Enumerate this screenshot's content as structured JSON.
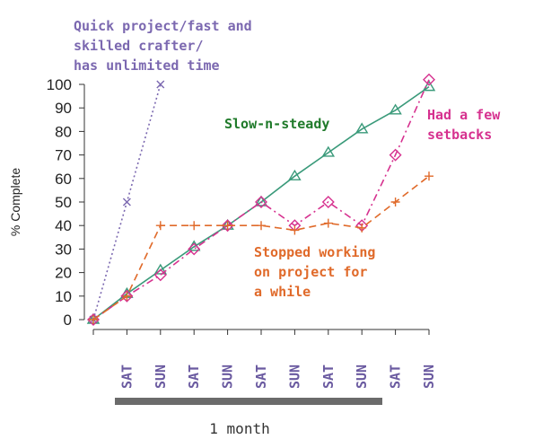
{
  "chart_data": {
    "type": "line",
    "ylabel": "% Complete",
    "ylim": [
      0,
      100
    ],
    "yticks": [
      0,
      10,
      20,
      30,
      40,
      50,
      60,
      70,
      80,
      90,
      100
    ],
    "x_labels": [
      "SAT",
      "SUN",
      "SAT",
      "SUN",
      "SAT",
      "SUN",
      "SAT",
      "SUN",
      "SAT",
      "SUN"
    ],
    "span_label": "1 month",
    "series": [
      {
        "name": "Quick project/fast and skilled crafter/ has unlimited time",
        "color": "#7b68b0",
        "marker": "x",
        "style": "dotted",
        "x": [
          0,
          1,
          2
        ],
        "values": [
          0,
          50,
          100
        ]
      },
      {
        "name": "Slow-n-steady",
        "color": "#3a9a7a",
        "marker": "triangle",
        "style": "solid",
        "x": [
          0,
          1,
          2,
          3,
          4,
          5,
          6,
          7,
          8,
          9,
          10
        ],
        "values": [
          0,
          11,
          21,
          31,
          40,
          50,
          61,
          71,
          81,
          89,
          99
        ]
      },
      {
        "name": "Had a few setbacks",
        "color": "#d6318f",
        "marker": "diamond",
        "style": "dashdot",
        "x": [
          0,
          1,
          2,
          3,
          4,
          5,
          6,
          7,
          8,
          9,
          10
        ],
        "values": [
          0,
          10,
          19,
          30,
          40,
          50,
          40,
          50,
          40,
          70,
          102
        ]
      },
      {
        "name": "Stopped working on project for a while",
        "color": "#e06a2a",
        "marker": "plus",
        "style": "dashed",
        "x": [
          0,
          1,
          2,
          3,
          4,
          5,
          6,
          7,
          8,
          9,
          10
        ],
        "values": [
          0,
          10,
          40,
          40,
          40,
          40,
          38,
          41,
          39,
          50,
          61
        ]
      }
    ],
    "annotations": {
      "quick": [
        "Quick project/fast and",
        "skilled crafter/",
        "has unlimited time"
      ],
      "slow": [
        "Slow-n-steady"
      ],
      "setbacks": [
        "Had a few",
        "setbacks"
      ],
      "stopped": [
        "Stopped working",
        "on project for",
        "a while"
      ]
    }
  }
}
